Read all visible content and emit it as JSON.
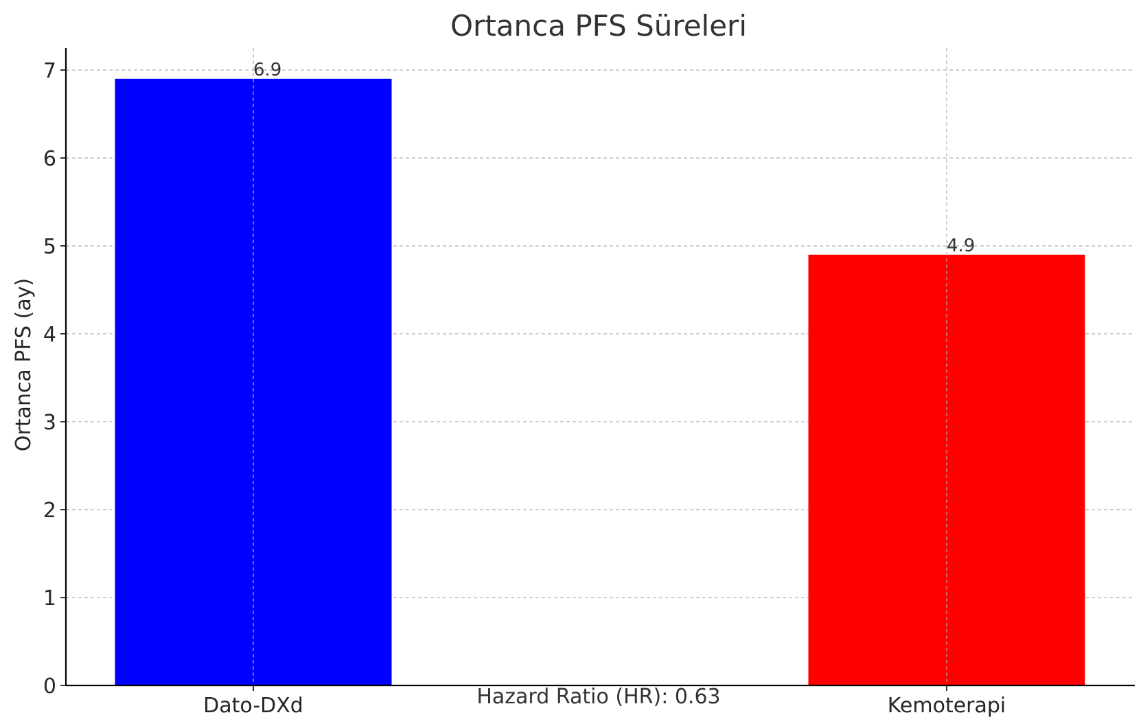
{
  "chart_data": {
    "type": "bar",
    "title": "Ortanca PFS Süreleri",
    "xlabel": "",
    "ylabel": "Ortanca PFS (ay)",
    "categories": [
      "Dato-DXd",
      "Kemoterapi"
    ],
    "values": [
      6.9,
      4.9
    ],
    "data_labels": [
      "6.9",
      "4.9"
    ],
    "colors": [
      "#0000ff",
      "#ff0000"
    ],
    "ylim": [
      0,
      7.25
    ],
    "y_ticks": [
      0,
      1,
      2,
      3,
      4,
      5,
      6,
      7
    ],
    "grid": true,
    "annotation": "Hazard Ratio (HR): 0.63"
  }
}
